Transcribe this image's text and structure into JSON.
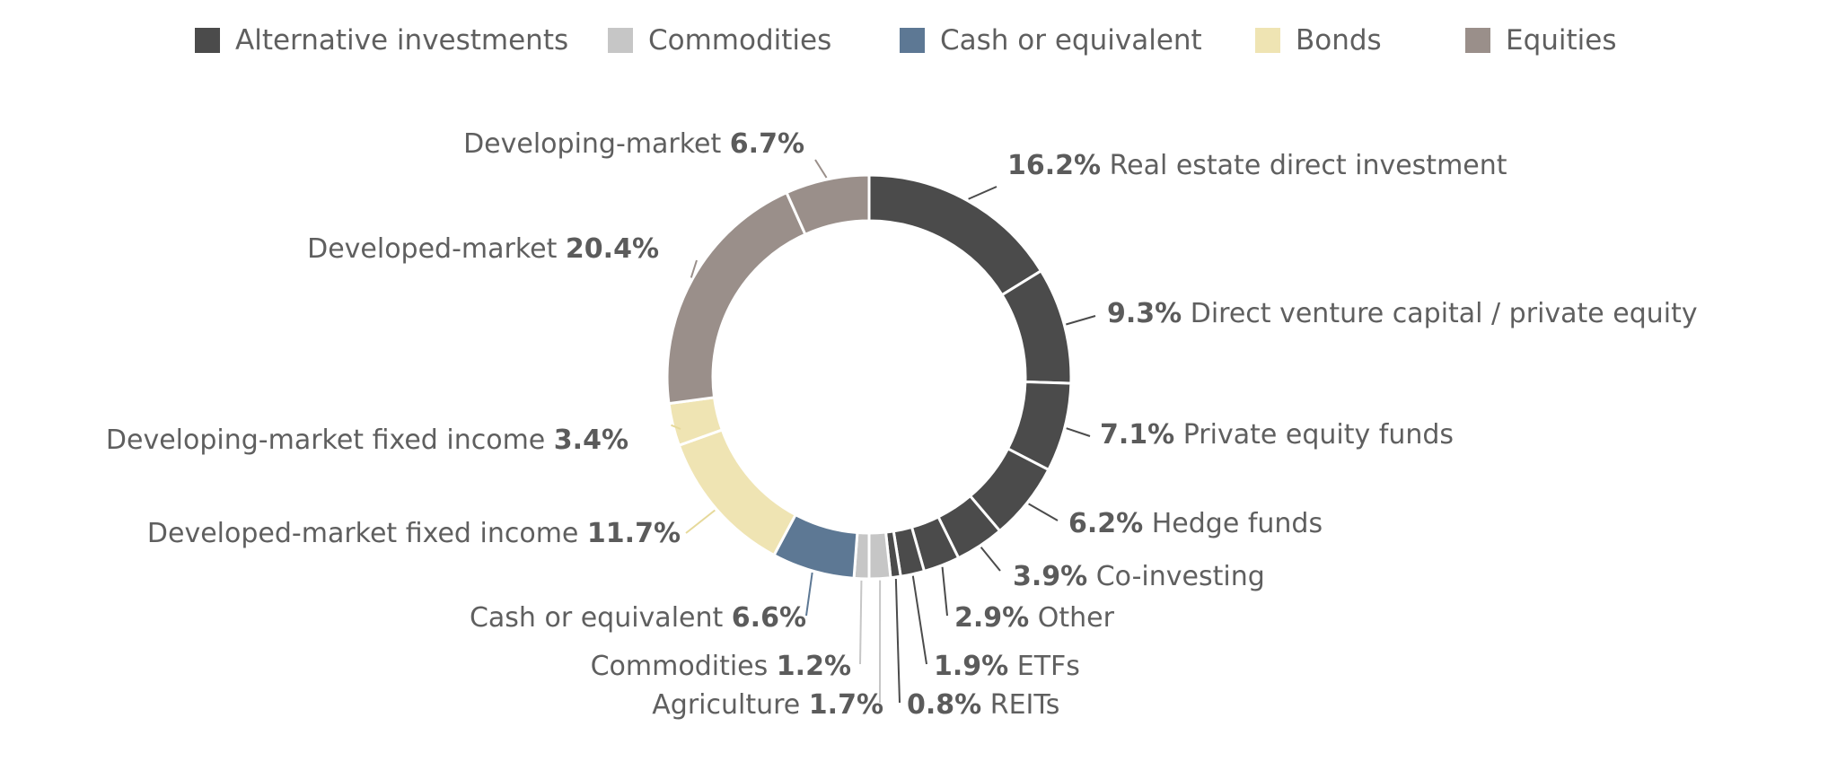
{
  "chart_data": {
    "type": "donut",
    "title": "",
    "legend": {
      "placement": "top",
      "items": [
        {
          "name": "Alternative investments",
          "color": "#4b4b4b"
        },
        {
          "name": "Commodities",
          "color": "#c6c6c6"
        },
        {
          "name": "Cash or equivalent",
          "color": "#5d7894"
        },
        {
          "name": "Bonds",
          "color": "#efe4b3"
        },
        {
          "name": "Equities",
          "color": "#9a8f8a"
        }
      ]
    },
    "slices": [
      {
        "label": "Real estate direct investment",
        "value": 16.2,
        "value_text": "16.2%",
        "group": "Alternative investments",
        "color": "#4b4b4b"
      },
      {
        "label": "Direct venture capital / private equity",
        "value": 9.3,
        "value_text": "9.3%",
        "group": "Alternative investments",
        "color": "#4b4b4b"
      },
      {
        "label": "Private equity funds",
        "value": 7.1,
        "value_text": "7.1%",
        "group": "Alternative investments",
        "color": "#4b4b4b"
      },
      {
        "label": "Hedge funds",
        "value": 6.2,
        "value_text": "6.2%",
        "group": "Alternative investments",
        "color": "#4b4b4b"
      },
      {
        "label": "Co-investing",
        "value": 3.9,
        "value_text": "3.9%",
        "group": "Alternative investments",
        "color": "#4b4b4b"
      },
      {
        "label": "Other",
        "value": 2.9,
        "value_text": "2.9%",
        "group": "Alternative investments",
        "color": "#4b4b4b"
      },
      {
        "label": "ETFs",
        "value": 1.9,
        "value_text": "1.9%",
        "group": "Alternative investments",
        "color": "#4b4b4b"
      },
      {
        "label": "REITs",
        "value": 0.8,
        "value_text": "0.8%",
        "group": "Alternative investments",
        "color": "#4b4b4b"
      },
      {
        "label": "Agriculture",
        "value": 1.7,
        "value_text": "1.7%",
        "group": "Commodities",
        "color": "#c6c6c6"
      },
      {
        "label": "Commodities",
        "value": 1.2,
        "value_text": "1.2%",
        "group": "Commodities",
        "color": "#c6c6c6"
      },
      {
        "label": "Cash or equivalent",
        "value": 6.6,
        "value_text": "6.6%",
        "group": "Cash or equivalent",
        "color": "#5d7894"
      },
      {
        "label": "Developed-market fixed income",
        "value": 11.7,
        "value_text": "11.7%",
        "group": "Bonds",
        "color": "#efe4b3"
      },
      {
        "label": "Developing-market fixed income",
        "value": 3.4,
        "value_text": "3.4%",
        "group": "Bonds",
        "color": "#efe4b3"
      },
      {
        "label": "Developed-market",
        "value": 20.4,
        "value_text": "20.4%",
        "group": "Equities",
        "color": "#9a8f8a"
      },
      {
        "label": "Developing-market",
        "value": 6.7,
        "value_text": "6.7%",
        "group": "Equities",
        "color": "#9a8f8a"
      }
    ]
  }
}
